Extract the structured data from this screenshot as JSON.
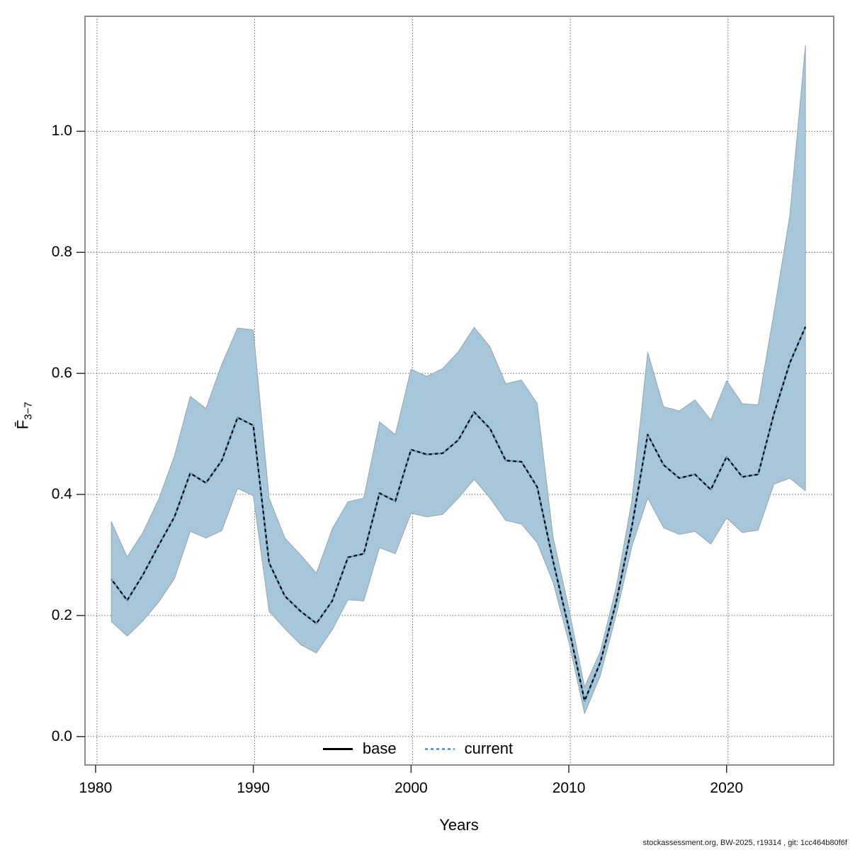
{
  "chart_data": {
    "type": "line",
    "title": "",
    "xlabel": "Years",
    "ylabel_main": "F̄",
    "ylabel_sub": "3−7",
    "xlim": [
      1979.33,
      2026.79
    ],
    "ylim": [
      -0.047,
      1.19
    ],
    "xticks": [
      1980,
      1990,
      2000,
      2010,
      2020
    ],
    "yticks": [
      0.0,
      0.2,
      0.4,
      0.6,
      0.8,
      1.0
    ],
    "grid": "dotted gridlines at all x and y ticks",
    "legend_position": "bottom-center-inside",
    "x": [
      1981,
      1982,
      1983,
      1984,
      1985,
      1986,
      1987,
      1988,
      1989,
      1990,
      1991,
      1992,
      1993,
      1994,
      1995,
      1996,
      1997,
      1998,
      1999,
      2000,
      2001,
      2002,
      2003,
      2004,
      2005,
      2006,
      2007,
      2008,
      2009,
      2010,
      2011,
      2012,
      2013,
      2014,
      2015,
      2016,
      2017,
      2018,
      2019,
      2020,
      2021,
      2022,
      2023,
      2024,
      2025
    ],
    "series": [
      {
        "name": "base",
        "style": "solid",
        "color": "#000000",
        "overplotted_with_current": true,
        "values": [
          0.26,
          0.225,
          0.267,
          0.316,
          0.363,
          0.435,
          0.419,
          0.456,
          0.527,
          0.514,
          0.287,
          0.232,
          0.207,
          0.187,
          0.224,
          0.296,
          0.302,
          0.402,
          0.389,
          0.474,
          0.466,
          0.468,
          0.49,
          0.536,
          0.509,
          0.456,
          0.454,
          0.412,
          0.29,
          0.179,
          0.059,
          0.123,
          0.222,
          0.347,
          0.499,
          0.449,
          0.427,
          0.433,
          0.408,
          0.462,
          0.429,
          0.433,
          0.533,
          0.617,
          0.677
        ]
      },
      {
        "name": "current",
        "style": "dotted",
        "color": "#62a2c6",
        "values": [
          0.26,
          0.225,
          0.267,
          0.316,
          0.363,
          0.435,
          0.419,
          0.456,
          0.527,
          0.514,
          0.287,
          0.232,
          0.207,
          0.187,
          0.224,
          0.296,
          0.302,
          0.402,
          0.389,
          0.474,
          0.466,
          0.468,
          0.49,
          0.536,
          0.509,
          0.456,
          0.454,
          0.412,
          0.29,
          0.179,
          0.059,
          0.123,
          0.222,
          0.347,
          0.499,
          0.449,
          0.427,
          0.433,
          0.408,
          0.462,
          0.429,
          0.433,
          0.533,
          0.617,
          0.677
        ]
      }
    ],
    "ribbon": {
      "description": "confidence band around current series",
      "fill": "#a6c7d9",
      "edge": "#98a6ae",
      "lower": [
        0.19,
        0.166,
        0.191,
        0.222,
        0.261,
        0.339,
        0.328,
        0.34,
        0.41,
        0.398,
        0.207,
        0.178,
        0.152,
        0.138,
        0.176,
        0.226,
        0.224,
        0.312,
        0.302,
        0.369,
        0.363,
        0.367,
        0.394,
        0.425,
        0.394,
        0.357,
        0.351,
        0.32,
        0.255,
        0.156,
        0.038,
        0.101,
        0.201,
        0.314,
        0.394,
        0.345,
        0.334,
        0.339,
        0.318,
        0.361,
        0.337,
        0.341,
        0.417,
        0.427,
        0.406
      ],
      "upper": [
        0.355,
        0.297,
        0.337,
        0.392,
        0.464,
        0.562,
        0.542,
        0.615,
        0.675,
        0.672,
        0.394,
        0.328,
        0.3,
        0.27,
        0.343,
        0.388,
        0.394,
        0.52,
        0.499,
        0.607,
        0.595,
        0.608,
        0.636,
        0.676,
        0.644,
        0.583,
        0.589,
        0.55,
        0.33,
        0.211,
        0.082,
        0.141,
        0.246,
        0.39,
        0.635,
        0.545,
        0.538,
        0.556,
        0.523,
        0.588,
        0.55,
        0.548,
        0.7,
        0.86,
        1.142
      ]
    }
  },
  "legend": {
    "items": [
      {
        "label": "base"
      },
      {
        "label": "current"
      }
    ]
  },
  "footer": "stockassessment.org, BW-2025, r19314 , git: 1cc464b80f6f",
  "colors": {
    "background": "#ffffff",
    "plot_border": "#7f7f7f",
    "grid": "#3a3a3a",
    "tick": "#2f2f2f",
    "ribbon_fill": "#a6c7d9",
    "base_line": "#000000",
    "current_line": "#62a2c6"
  }
}
